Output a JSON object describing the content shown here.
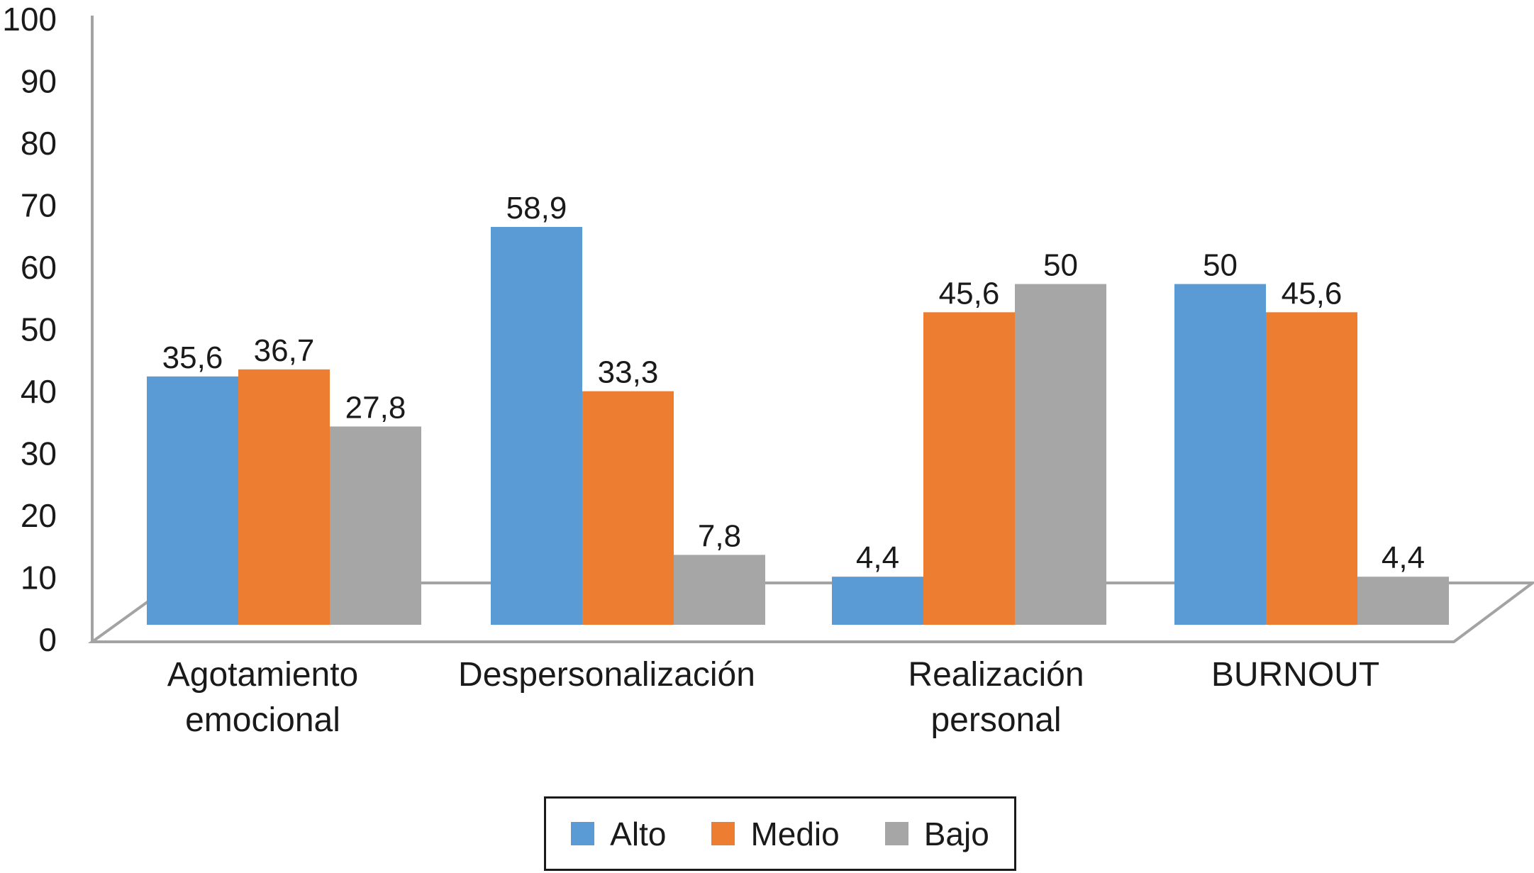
{
  "figure": {
    "background": "#ffffff",
    "text_color": "#1a1a1a",
    "axis_color": "#a3a3a3"
  },
  "chart_data": {
    "type": "bar",
    "title": "",
    "xlabel": "",
    "ylabel": "",
    "categories": [
      "Agotamiento emocional",
      "Despersonalización",
      "Realización personal",
      "BURNOUT"
    ],
    "series": [
      {
        "name": "Alto",
        "color": "#5b9bd5",
        "values": [
          35.6,
          58.9,
          4.4,
          50
        ],
        "labels": [
          "35,6",
          "58,9",
          "4,4",
          "50"
        ]
      },
      {
        "name": "Medio",
        "color": "#ed7d31",
        "values": [
          36.7,
          33.3,
          45.6,
          45.6
        ],
        "labels": [
          "36,7",
          "33,3",
          "45,6",
          "45,6"
        ]
      },
      {
        "name": "Bajo",
        "color": "#a6a6a6",
        "values": [
          27.8,
          7.8,
          50,
          4.4
        ],
        "labels": [
          "27,8",
          "7,8",
          "50",
          "4,4"
        ]
      }
    ],
    "y_axis": {
      "min": 0,
      "max": 100,
      "step": 10,
      "tick_labels": [
        "0",
        "10",
        "20",
        "30",
        "40",
        "50",
        "60",
        "70",
        "80",
        "90",
        "100"
      ]
    },
    "grid": false,
    "legend": {
      "position": "bottom-center",
      "border_color": "#1a1a1a",
      "entries": [
        "Alto",
        "Medio",
        "Bajo"
      ]
    },
    "style_notes": "pseudo-3D floor drawn as gray parallelogram, flat bars, value labels above bars, decimal comma format"
  }
}
